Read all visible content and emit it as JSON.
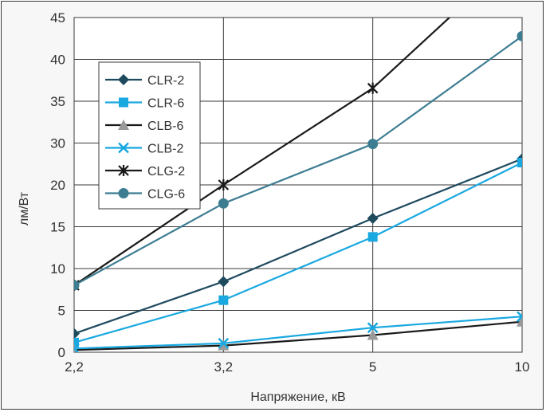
{
  "chart_data": {
    "type": "line",
    "title": "",
    "xlabel": "Напряжение, кВ",
    "ylabel": "лм/Вт",
    "categories": [
      "2,2",
      "3,2",
      "5",
      "10"
    ],
    "y_tick_labels": [
      "0",
      "5",
      "10",
      "15",
      "20",
      "30",
      "35",
      "40",
      "45"
    ],
    "ylim": [
      0,
      45
    ],
    "grid": true,
    "legend_position": "top-left",
    "series": [
      {
        "name": "CLR-2",
        "marker": "diamond",
        "color": "#1e4a5e",
        "values": [
          2.5,
          9.5,
          18,
          26
        ]
      },
      {
        "name": "CLR-6",
        "marker": "square",
        "color": "#19a8e0",
        "values": [
          1.3,
          7,
          15.5,
          25.5
        ]
      },
      {
        "name": "CLB-6",
        "marker": "triangle",
        "color": "#1a1a1a",
        "values": [
          0.3,
          0.9,
          2.3,
          4.1
        ]
      },
      {
        "name": "CLB-2",
        "marker": "x",
        "color": "#19a8e0",
        "values": [
          0.5,
          1.2,
          3.3,
          4.8
        ]
      },
      {
        "name": "CLG-2",
        "marker": "star",
        "color": "#1a1a1a",
        "values": [
          9,
          22.5,
          35.5,
          54
        ]
      },
      {
        "name": "CLG-6",
        "marker": "circle",
        "color": "#3d7d92",
        "values": [
          9,
          20,
          28,
          42.5
        ]
      }
    ]
  }
}
